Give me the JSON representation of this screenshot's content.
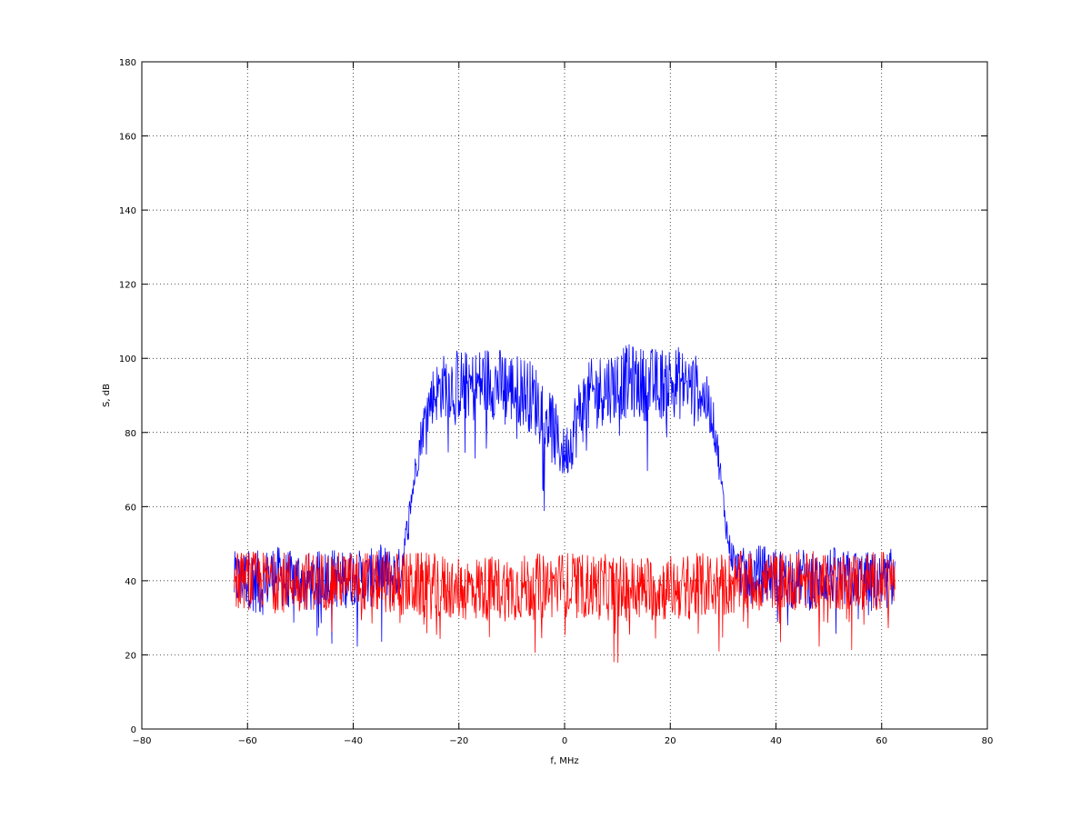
{
  "chart_data": {
    "type": "line",
    "title": "",
    "xlabel": "f, MHz",
    "ylabel": "S, dB",
    "xlim": [
      -80,
      80
    ],
    "ylim": [
      0,
      180
    ],
    "xticks": [
      -80,
      -60,
      -40,
      -20,
      0,
      20,
      40,
      60,
      80
    ],
    "yticks": [
      0,
      20,
      40,
      60,
      80,
      100,
      120,
      140,
      160,
      180
    ],
    "grid": true,
    "legend": "none",
    "series": [
      {
        "color": "#0000ff",
        "x": [
          -62.5,
          -60,
          -57.5,
          -55,
          -52.5,
          -50,
          -47.5,
          -45,
          -42.5,
          -40,
          -37.5,
          -35,
          -32.5,
          -31,
          -30,
          -29,
          -28,
          -27,
          -26,
          -25,
          -22.5,
          -20,
          -17.5,
          -15,
          -12.5,
          -10,
          -7.5,
          -5,
          -4,
          -3,
          -2,
          -1,
          0,
          1,
          2,
          3,
          5,
          7.5,
          10,
          12.5,
          15,
          17.5,
          20,
          22.5,
          25,
          26,
          27,
          28,
          29,
          30,
          31,
          32.5,
          35,
          37.5,
          40,
          42.5,
          45,
          47.5,
          50,
          52.5,
          55,
          57.5,
          60,
          62.5
        ],
        "y": [
          40,
          41,
          39,
          42,
          40,
          41,
          39,
          42,
          40,
          41,
          40,
          42,
          41,
          43,
          52,
          62,
          72,
          80,
          86,
          90,
          93,
          93,
          92,
          94,
          93,
          92,
          91,
          88,
          86,
          84,
          80,
          76,
          74,
          77,
          82,
          86,
          90,
          92,
          93,
          94,
          93,
          93,
          94,
          93,
          92,
          90,
          88,
          84,
          75,
          62,
          50,
          43,
          41,
          42,
          41,
          40,
          41,
          39,
          42,
          40,
          41,
          39,
          40,
          41
        ],
        "spread": [
          8,
          8,
          9,
          8,
          8,
          8,
          8,
          8,
          8,
          8,
          8,
          8,
          8,
          6,
          4,
          4,
          5,
          6,
          7,
          8,
          9,
          10,
          10,
          10,
          10,
          10,
          10,
          10,
          11,
          11,
          10,
          8,
          7,
          8,
          10,
          10,
          10,
          10,
          10,
          10,
          10,
          10,
          10,
          10,
          9,
          8,
          7,
          6,
          5,
          4,
          4,
          6,
          8,
          8,
          8,
          8,
          8,
          8,
          8,
          8,
          8,
          9,
          8,
          8
        ]
      },
      {
        "color": "#ff0000",
        "x": [
          -62.5,
          -50,
          -40,
          -30,
          -20,
          -10,
          0,
          10,
          20,
          30,
          40,
          50,
          62.5
        ],
        "y": [
          40,
          40,
          40,
          39,
          38,
          38,
          39,
          38,
          38,
          39,
          40,
          40,
          40
        ],
        "spread": [
          8,
          8,
          8,
          9,
          9,
          9,
          9,
          9,
          9,
          9,
          8,
          8,
          8
        ]
      }
    ]
  }
}
